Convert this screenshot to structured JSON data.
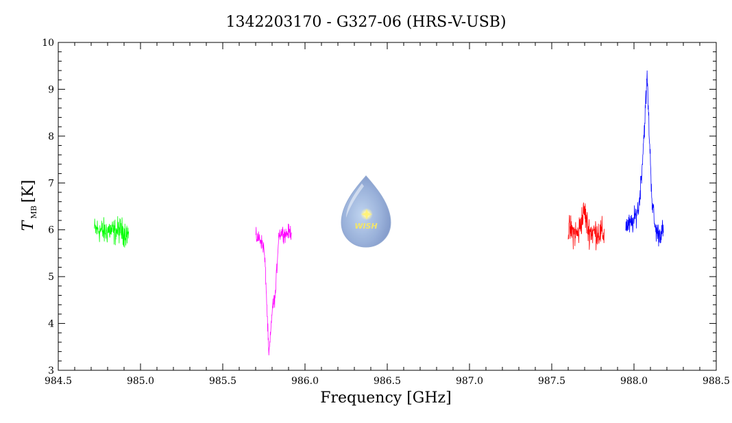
{
  "chart_data": {
    "type": "line",
    "title": "1342203170 - G327-06 (HRS-V-USB)",
    "xlabel": "Frequency [GHz]",
    "ylabel": {
      "main": "T",
      "subscript": "MB",
      "unit": "[K]"
    },
    "xlim": [
      984.5,
      988.5
    ],
    "ylim": [
      3,
      10
    ],
    "xticks": [
      "984.5",
      "985.0",
      "985.5",
      "986.0",
      "986.5",
      "987.0",
      "987.5",
      "988.0",
      "988.5"
    ],
    "yticks": [
      "3",
      "4",
      "5",
      "6",
      "7",
      "8",
      "9",
      "10"
    ],
    "grid": false,
    "legend": "none",
    "series": [
      {
        "color": "#00ff00",
        "x": [
          984.72,
          984.75,
          984.78,
          984.81,
          984.84,
          984.87,
          984.9,
          984.93
        ],
        "y": [
          6.0,
          6.0,
          5.95,
          6.0,
          5.95,
          6.0,
          5.95,
          5.9
        ],
        "noise": 0.35
      },
      {
        "color": "#ff00ff",
        "x": [
          985.7,
          985.73,
          985.75,
          985.76,
          985.77,
          985.78,
          985.79,
          985.8,
          985.82,
          985.84,
          985.86,
          985.88,
          985.9,
          985.92
        ],
        "y": [
          5.85,
          5.8,
          5.6,
          5.1,
          4.2,
          3.3,
          3.7,
          4.3,
          4.6,
          5.9,
          5.95,
          5.9,
          5.95,
          5.95
        ],
        "noise": 0.2
      },
      {
        "color": "#ff0000",
        "x": [
          987.6,
          987.63,
          987.66,
          987.68,
          987.7,
          987.72,
          987.75,
          987.78,
          987.82
        ],
        "y": [
          6.0,
          5.95,
          5.9,
          6.2,
          6.4,
          6.0,
          5.95,
          5.95,
          5.9
        ],
        "noise": 0.4
      },
      {
        "color": "#0000ff",
        "x": [
          987.95,
          987.98,
          988.0,
          988.03,
          988.05,
          988.07,
          988.08,
          988.09,
          988.11,
          988.13,
          988.15,
          988.18
        ],
        "y": [
          6.1,
          6.1,
          6.2,
          6.5,
          7.4,
          8.6,
          9.3,
          8.3,
          6.6,
          6.0,
          5.9,
          6.0
        ],
        "noise": 0.3
      }
    ]
  },
  "logo": {
    "text": "WISH"
  }
}
